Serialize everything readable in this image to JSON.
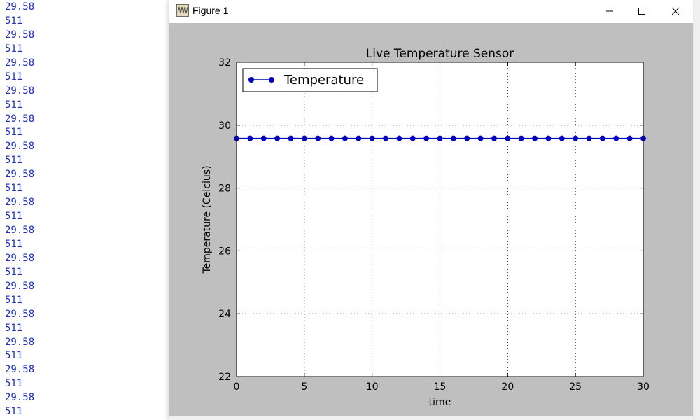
{
  "console": {
    "lines": [
      "29.58",
      "511",
      "29.58",
      "511",
      "29.58",
      "511",
      "29.58",
      "511",
      "29.58",
      "511",
      "29.58",
      "511",
      "29.58",
      "511",
      "29.58",
      "511",
      "29.58",
      "511",
      "29.58",
      "511",
      "29.58",
      "511",
      "29.58",
      "511",
      "29.58",
      "511",
      "29.58",
      "511",
      "29.58",
      "511"
    ]
  },
  "window": {
    "title": "Figure 1",
    "app_icon": "matplotlib-figure-icon",
    "buttons": [
      "minimize",
      "maximize",
      "close"
    ]
  },
  "colors": {
    "series": "#0000bf",
    "console_text": "#1e2fb8",
    "figure_bg": "#bfbfbf"
  },
  "chart_data": {
    "type": "line",
    "title": "Live Temperature Sensor",
    "xlabel": "time",
    "ylabel": "Temperature (Celcius)",
    "xlim": [
      0,
      30
    ],
    "ylim": [
      22,
      32
    ],
    "xticks": [
      "0",
      "5",
      "10",
      "15",
      "20",
      "25",
      "30"
    ],
    "yticks": [
      "22",
      "24",
      "26",
      "28",
      "30",
      "32"
    ],
    "grid": true,
    "legend_position": "top-left",
    "series": [
      {
        "name": "Temperature",
        "marker": "circle",
        "x": [
          0,
          1,
          2,
          3,
          4,
          5,
          6,
          7,
          8,
          9,
          10,
          11,
          12,
          13,
          14,
          15,
          16,
          17,
          18,
          19,
          20,
          21,
          22,
          23,
          24,
          25,
          26,
          27,
          28,
          29,
          30
        ],
        "values": [
          29.58,
          29.58,
          29.58,
          29.58,
          29.58,
          29.58,
          29.58,
          29.58,
          29.58,
          29.58,
          29.58,
          29.58,
          29.58,
          29.58,
          29.58,
          29.58,
          29.58,
          29.58,
          29.58,
          29.58,
          29.58,
          29.58,
          29.58,
          29.58,
          29.58,
          29.58,
          29.58,
          29.58,
          29.58,
          29.58,
          29.58
        ]
      }
    ]
  }
}
